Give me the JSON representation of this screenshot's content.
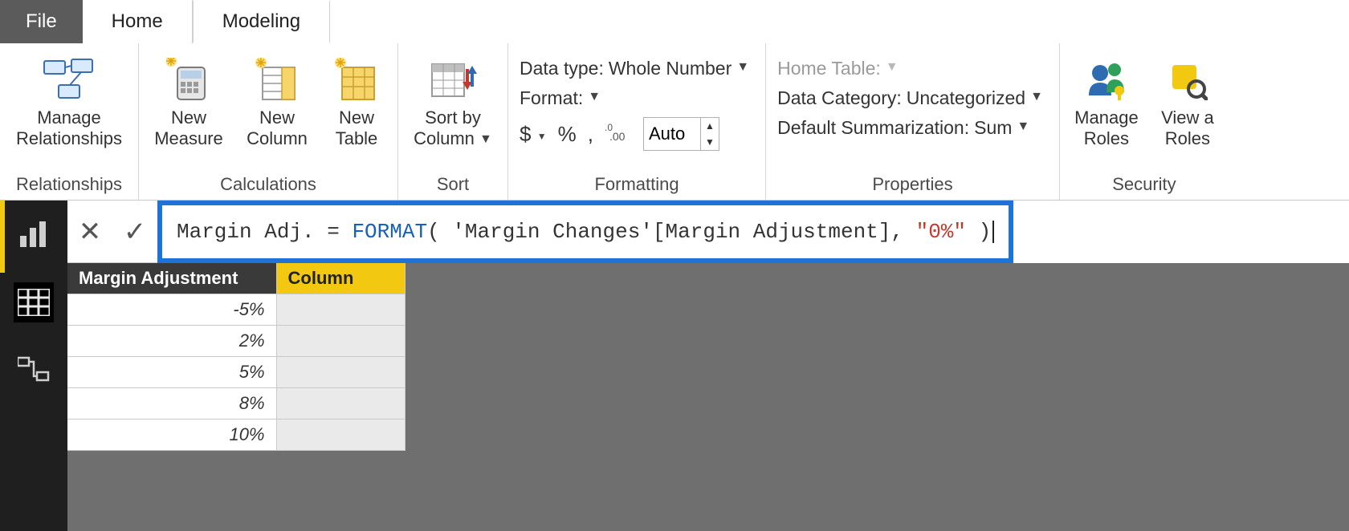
{
  "tabs": {
    "file": "File",
    "home": "Home",
    "modeling": "Modeling",
    "active": "Modeling"
  },
  "ribbon": {
    "relationships": {
      "label": "Relationships",
      "manage": "Manage\nRelationships"
    },
    "calculations": {
      "label": "Calculations",
      "newMeasure": "New\nMeasure",
      "newColumn": "New\nColumn",
      "newTable": "New\nTable"
    },
    "sort": {
      "label": "Sort",
      "sortBy": "Sort by\nColumn"
    },
    "formatting": {
      "label": "Formatting",
      "dataTypeLabel": "Data type:",
      "dataTypeValue": "Whole Number",
      "formatLabel": "Format:",
      "currency": "$",
      "percent": "%",
      "comma": ",",
      "decimals": ".00",
      "autoValue": "Auto"
    },
    "properties": {
      "label": "Properties",
      "homeTableLabel": "Home Table:",
      "dataCategoryLabel": "Data Category:",
      "dataCategoryValue": "Uncategorized",
      "defaultSumLabel": "Default Summarization:",
      "defaultSumValue": "Sum"
    },
    "security": {
      "label": "Security",
      "manageRoles": "Manage\nRoles",
      "viewAs": "View a\nRoles"
    }
  },
  "formula": {
    "lhs": "Margin Adj. ",
    "eq": "= ",
    "fn": "FORMAT",
    "open": "(",
    "arg": " 'Margin Changes'[Margin Adjustment], ",
    "str": "\"0%\"",
    "close": " )"
  },
  "table": {
    "headers": [
      "Margin Adjustment",
      "Column"
    ],
    "rows": [
      "-5%",
      "2%",
      "5%",
      "8%",
      "10%"
    ]
  },
  "colors": {
    "accentYellow": "#f2c811",
    "highlightBlue": "#1e73d6",
    "keyword": "#1560c0",
    "string": "#c23a2d",
    "darkHeader": "#3a3a3a"
  }
}
